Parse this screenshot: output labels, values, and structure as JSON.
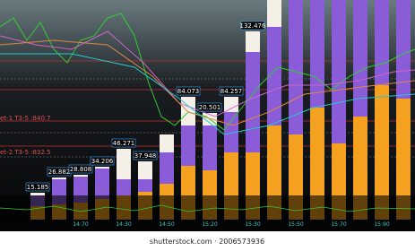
{
  "bar_labels": [
    "15.185",
    "26.882",
    "28.808",
    "34.206",
    "46.271",
    "37.948",
    "84.073",
    "20.501",
    "84.257",
    "132.476"
  ],
  "level_labels": [
    "et-1 T3-5 :840.7",
    "et-2 T3-5 :832.5"
  ],
  "time_labels": [
    "14:70",
    "14:30",
    "14:50",
    "15:20",
    "15:30",
    "15:50",
    "15:70",
    "15:90"
  ],
  "watermark": "shutterstock.com · 2006573936"
}
